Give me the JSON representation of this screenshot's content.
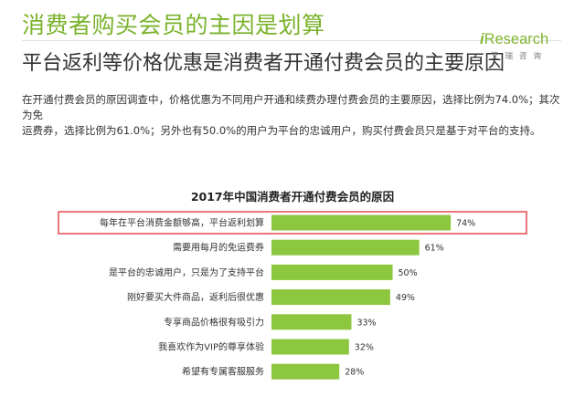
{
  "header": {
    "title": "消费者购买会员的主因是划算",
    "subtitle": "平台返利等价格优惠是消费者开通付费会员的主要原因",
    "body_lines": [
      "在开通付费会员的原因调查中，价格优惠为不同用户开通和续费办理付费会员的主要原因，选择比例为74.0%；其次为免",
      "运费券，选择比例为61.0%；另外也有50.0%的用户为平台的忠诚用户，购买付费会员只是基于对平台的支持。"
    ]
  },
  "logo": {
    "i": "i",
    "word": "Research",
    "sub": "艾瑞咨询",
    "color": "#80b531"
  },
  "chart_data": {
    "type": "bar",
    "orientation": "horizontal",
    "title": "2017年中国消费者开通付费会员的原因",
    "categories": [
      "每年在平台消费金额够高，平台返利划算",
      "需要用每月的免运费券",
      "是平台的忠诚用户，只是为了支持平台",
      "刚好要买大件商品，返利后很优惠",
      "专享商品价格很有吸引力",
      "我喜欢作为VIP的尊享体验",
      "希望有专属客服服务"
    ],
    "values": [
      74,
      61,
      50,
      49,
      33,
      32,
      28
    ],
    "value_labels": [
      "74%",
      "61%",
      "50%",
      "49%",
      "33%",
      "32%",
      "28%"
    ],
    "unit": "%",
    "bar_color": "#8dc63f",
    "highlight_index": 0,
    "highlight_color": "#e9545a",
    "xlim": [
      0,
      100
    ],
    "grid": false
  }
}
